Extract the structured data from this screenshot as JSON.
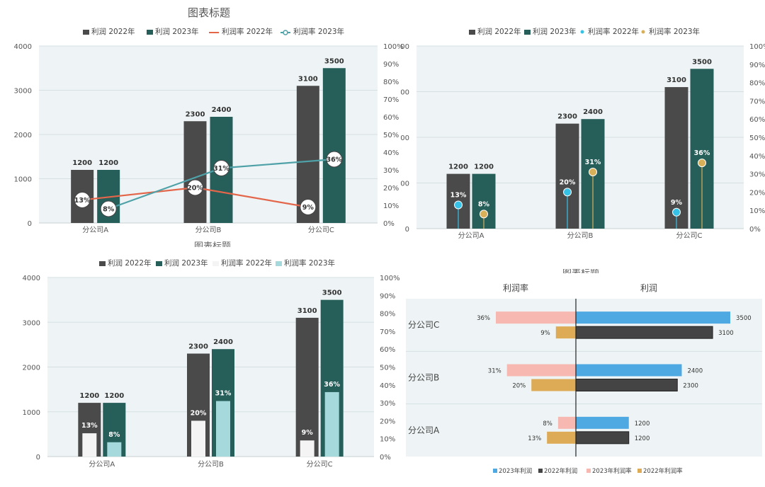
{
  "colors": {
    "plot_bg": "#eef4f5",
    "gridline": "#d6e0e3",
    "profit_2022": "#4a4a4a",
    "profit_2023": "#265e5a",
    "margin_2022_line": "#e3664a",
    "margin_2023_line": "#4fa1a8",
    "lollipop_2022": "#36c2e6",
    "lollipop_2023": "#d9b05a",
    "inner_2022": "#f4f4f4",
    "inner_2023": "#a6d9dc",
    "butterfly_2023_profit": "#4ea8e1",
    "butterfly_2022_profit": "#444444",
    "butterfly_2023_margin": "#f6b8b0",
    "butterfly_2022_margin": "#ddaa55"
  },
  "chart_data": [
    {
      "id": "combo-line",
      "type": "bar",
      "title": "图表标题",
      "bottom_title_fragment": "图表标题",
      "legend": [
        "利润 2022年",
        "利润 2023年",
        "利润率 2022年",
        "利润率 2023年"
      ],
      "categories": [
        "分公司A",
        "分公司B",
        "分公司C"
      ],
      "series": [
        {
          "name": "利润 2022年",
          "kind": "bar",
          "values": [
            1200,
            2300,
            3100
          ]
        },
        {
          "name": "利润 2023年",
          "kind": "bar",
          "values": [
            1200,
            2400,
            3500
          ]
        },
        {
          "name": "利润率 2022年",
          "kind": "line",
          "axis": "right",
          "values": [
            0.13,
            0.2,
            0.09
          ],
          "labels": [
            "13%",
            "20%",
            "9%"
          ]
        },
        {
          "name": "利润率 2023年",
          "kind": "line",
          "axis": "right",
          "values": [
            0.08,
            0.31,
            0.36
          ],
          "labels": [
            "8%",
            "31%",
            "36%"
          ]
        }
      ],
      "y_left": {
        "ylim": [
          0,
          4000
        ],
        "ticks": [
          "0",
          "1000",
          "2000",
          "3000",
          "4000"
        ]
      },
      "y_right": {
        "ylim": [
          0,
          1
        ],
        "ticks": [
          "0%",
          "10%",
          "20%",
          "30%",
          "40%",
          "50%",
          "60%",
          "70%",
          "80%",
          "90%",
          "100%"
        ]
      },
      "bar_labels": [
        [
          "1200",
          "2300",
          "3100"
        ],
        [
          "1200",
          "2400",
          "3500"
        ]
      ]
    },
    {
      "id": "combo-lollipop",
      "type": "bar",
      "legend": [
        "利润 2022年",
        "利润 2023年",
        "利润率 2022年",
        "利润率 2023年"
      ],
      "categories": [
        "分公司A",
        "分公司B",
        "分公司C"
      ],
      "series": [
        {
          "name": "利润 2022年",
          "kind": "bar",
          "values": [
            1200,
            2300,
            3100
          ]
        },
        {
          "name": "利润 2023年",
          "kind": "bar",
          "values": [
            1200,
            2400,
            3500
          ]
        },
        {
          "name": "利润率 2022年",
          "kind": "lollipop",
          "axis": "right",
          "values": [
            0.13,
            0.2,
            0.09
          ],
          "labels": [
            "13%",
            "20%",
            "9%"
          ]
        },
        {
          "name": "利润率 2023年",
          "kind": "lollipop",
          "axis": "right",
          "values": [
            0.08,
            0.31,
            0.36
          ],
          "labels": [
            "8%",
            "31%",
            "36%"
          ]
        }
      ],
      "y_left": {
        "ylim": [
          0,
          4000
        ],
        "ticks": [
          "0",
          "00",
          "00",
          "00",
          "00"
        ]
      },
      "y_right": {
        "ylim": [
          0,
          1
        ],
        "ticks": [
          "0%",
          "10%",
          "20%",
          "30%",
          "40%",
          "50%",
          "60%",
          "70%",
          "80%",
          "90%",
          "100%"
        ]
      },
      "bar_labels": [
        [
          "1200",
          "2300",
          "3100"
        ],
        [
          "1200",
          "2400",
          "3500"
        ]
      ]
    },
    {
      "id": "combo-inner-bars",
      "type": "bar",
      "legend": [
        "利润 2022年",
        "利润 2023年",
        "利润率 2022年",
        "利润率 2023年"
      ],
      "categories": [
        "分公司A",
        "分公司B",
        "分公司C"
      ],
      "series": [
        {
          "name": "利润 2022年",
          "kind": "bar",
          "values": [
            1200,
            2300,
            3100
          ]
        },
        {
          "name": "利润 2023年",
          "kind": "bar",
          "values": [
            1200,
            2400,
            3500
          ]
        },
        {
          "name": "利润率 2022年",
          "kind": "inner-bar",
          "axis": "right",
          "values": [
            0.13,
            0.2,
            0.09
          ],
          "labels": [
            "13%",
            "20%",
            "9%"
          ]
        },
        {
          "name": "利润率 2023年",
          "kind": "inner-bar",
          "axis": "right",
          "values": [
            0.08,
            0.31,
            0.36
          ],
          "labels": [
            "8%",
            "31%",
            "36%"
          ]
        }
      ],
      "y_left": {
        "ylim": [
          0,
          4000
        ],
        "ticks": [
          "0",
          "1000",
          "2000",
          "3000",
          "4000"
        ]
      },
      "y_right": {
        "ylim": [
          0,
          1
        ],
        "ticks": [
          "0%",
          "10%",
          "20%",
          "30%",
          "40%",
          "50%",
          "60%",
          "70%",
          "80%",
          "90%",
          "100%"
        ]
      },
      "bar_labels": [
        [
          "1200",
          "2300",
          "3100"
        ],
        [
          "1200",
          "2400",
          "3500"
        ]
      ]
    },
    {
      "id": "butterfly",
      "type": "bar",
      "orientation": "horizontal-butterfly",
      "title_fragment": "图表标题",
      "left_header": "利润率",
      "right_header": "利润",
      "categories": [
        "分公司C",
        "分公司B",
        "分公司A"
      ],
      "series": [
        {
          "name": "2023年利润",
          "side": "right",
          "values": [
            3500,
            2400,
            1200
          ],
          "labels": [
            "3500",
            "2400",
            "1200"
          ]
        },
        {
          "name": "2022年利润",
          "side": "right",
          "values": [
            3100,
            2300,
            1200
          ],
          "labels": [
            "3100",
            "2300",
            "1200"
          ]
        },
        {
          "name": "2023年利润率",
          "side": "left",
          "values": [
            0.36,
            0.31,
            0.08
          ],
          "labels": [
            "36%",
            "31%",
            "8%"
          ]
        },
        {
          "name": "2022年利润率",
          "side": "left",
          "values": [
            0.09,
            0.2,
            0.13
          ],
          "labels": [
            "9%",
            "20%",
            "13%"
          ]
        }
      ],
      "legend": [
        "2023年利润",
        "2022年利润",
        "2023年利润率",
        "2022年利润率"
      ]
    }
  ]
}
